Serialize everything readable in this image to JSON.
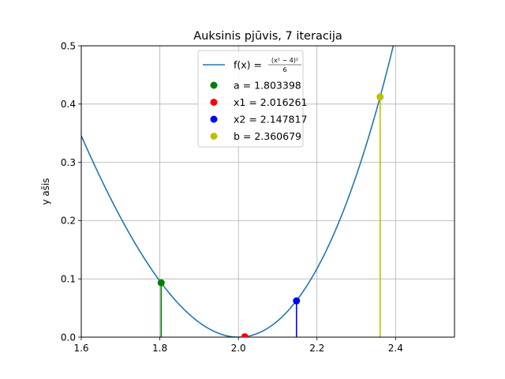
{
  "chart_data": {
    "type": "line",
    "title": "Auksinis pjūvis, 7 iteracija",
    "xlabel": "",
    "ylabel": "y ašis",
    "xlim": [
      1.6,
      2.55
    ],
    "ylim": [
      0.0,
      0.5
    ],
    "x_ticks": [
      "1.6",
      "1.8",
      "2.0",
      "2.2",
      "2.4"
    ],
    "x_tick_values": [
      1.6,
      1.8,
      2.0,
      2.2,
      2.4
    ],
    "y_ticks": [
      "0.0",
      "0.1",
      "0.2",
      "0.3",
      "0.4",
      "0.5"
    ],
    "y_tick_values": [
      0.0,
      0.1,
      0.2,
      0.3,
      0.4,
      0.5
    ],
    "grid": true,
    "legend_position": "upper center",
    "function": {
      "legend_prefix": "f(x) = ",
      "legend_numerator": "(x² − 4)²",
      "legend_denominator": "6",
      "expression": "(x^2-4)^2/6",
      "color": "#1f77b4"
    },
    "points": [
      {
        "name": "a",
        "label": "a = 1.803398",
        "x": 1.803398,
        "y": 0.0934,
        "color": "#008000"
      },
      {
        "name": "x1",
        "label": "x1 = 2.016261",
        "x": 2.016261,
        "y": 0.00071,
        "color": "#ff0000"
      },
      {
        "name": "x2",
        "label": "x2 = 2.147817",
        "x": 2.147817,
        "y": 0.0623,
        "color": "#0000ff"
      },
      {
        "name": "b",
        "label": "b = 2.360679",
        "x": 2.360679,
        "y": 0.4124,
        "color": "#bfbf00"
      }
    ],
    "stems": [
      {
        "name": "a",
        "x": 1.803398,
        "y": 0.0934,
        "color": "#008000"
      },
      {
        "name": "x2",
        "x": 2.147817,
        "y": 0.0623,
        "color": "#0000ff"
      },
      {
        "name": "b",
        "x": 2.360679,
        "y": 0.4124,
        "color": "#bfbf00"
      }
    ]
  }
}
